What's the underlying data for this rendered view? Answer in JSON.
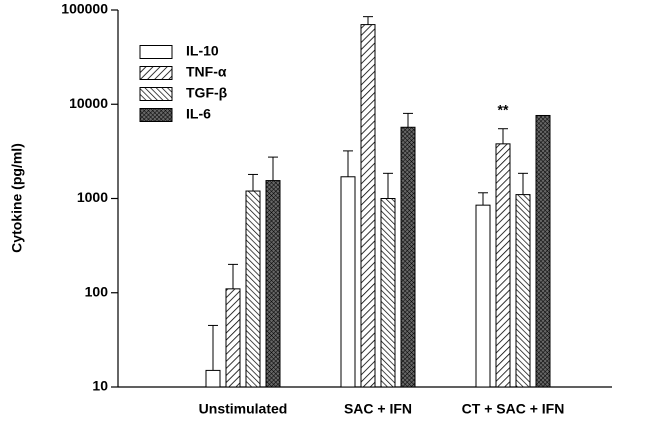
{
  "chart_data": {
    "type": "bar",
    "y_label": "Cytokine (pg/ml)",
    "categories": [
      "Unstimulated",
      "SAC + IFN",
      "CT + SAC + IFN"
    ],
    "series": [
      {
        "name": "IL-10",
        "color": "#000000",
        "pattern": "none",
        "values": [
          15,
          1700,
          850
        ],
        "errors": [
          30,
          1500,
          300
        ]
      },
      {
        "name": "TNF-α",
        "color": "#000000",
        "pattern": "forward",
        "values": [
          110,
          70000,
          3800
        ],
        "errors": [
          90,
          15000,
          1700
        ]
      },
      {
        "name": "TGF-β",
        "color": "#000000",
        "pattern": "back",
        "values": [
          1200,
          1000,
          1100
        ],
        "errors": [
          600,
          850,
          750
        ]
      },
      {
        "name": "IL-6",
        "color": "#000000",
        "pattern": "cross",
        "values": [
          1550,
          5700,
          7600
        ],
        "errors": [
          1200,
          2300,
          null
        ]
      }
    ],
    "annotations": [
      {
        "text": "**",
        "category": 2,
        "series": 1
      }
    ],
    "ylim": [
      10,
      100000
    ],
    "yticks": [
      10,
      100,
      1000,
      10000,
      100000
    ],
    "log_y": true,
    "grid": false,
    "legend": "upper left"
  }
}
